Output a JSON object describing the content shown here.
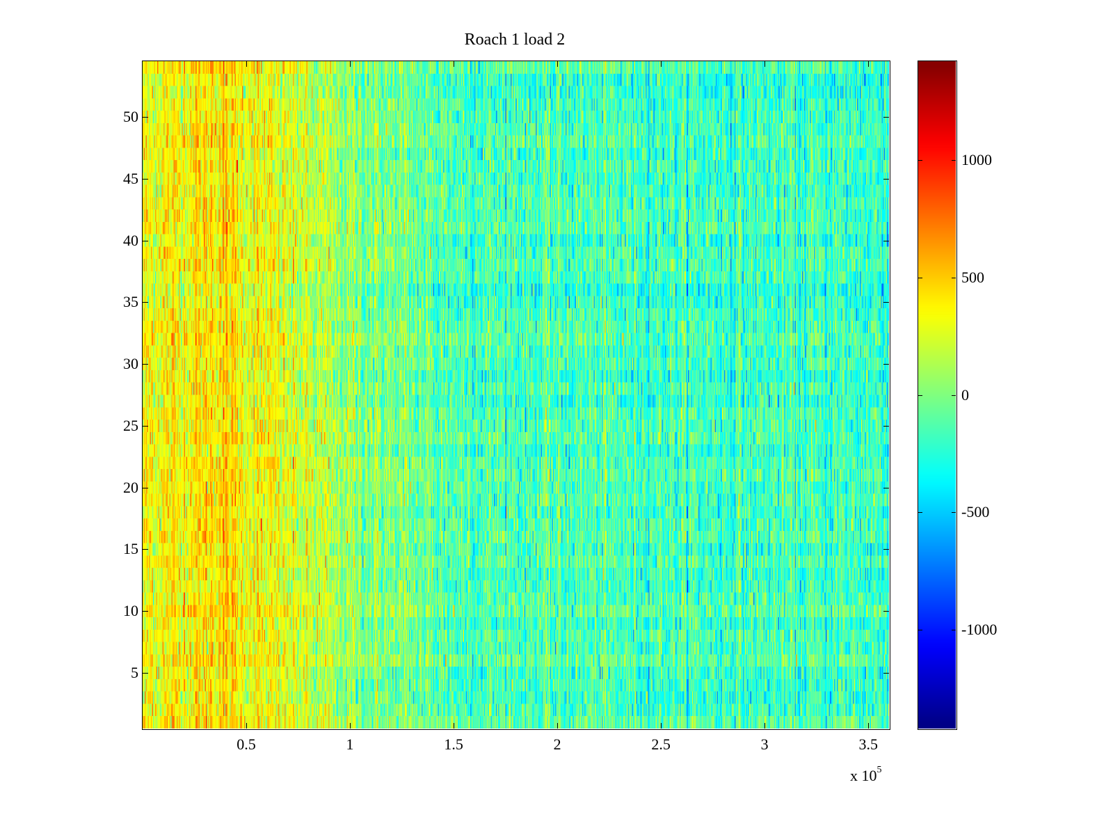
{
  "chart_data": {
    "type": "heatmap",
    "title": "Roach 1 load 2",
    "xlabel": "",
    "ylabel": "",
    "x_multiplier_label": "x 10",
    "x_multiplier_exponent": "5",
    "xlim": [
      0,
      3.6
    ],
    "ylim": [
      0.5,
      54.5
    ],
    "rows": 54,
    "x_ticks": [
      0.5,
      1,
      1.5,
      2,
      2.5,
      3,
      3.5
    ],
    "x_tick_labels": [
      "0.5",
      "1",
      "1.5",
      "2",
      "2.5",
      "3",
      "3.5"
    ],
    "y_ticks": [
      5,
      10,
      15,
      20,
      25,
      30,
      35,
      40,
      45,
      50
    ],
    "y_tick_labels": [
      "5",
      "10",
      "15",
      "20",
      "25",
      "30",
      "35",
      "40",
      "45",
      "50"
    ],
    "colormap": "jet",
    "clim": [
      -1420,
      1420
    ],
    "colorbar_ticks": [
      1000,
      500,
      0,
      -500,
      -1000
    ],
    "colorbar_tick_labels": [
      "1000",
      "500",
      "0",
      "-500",
      "-1000"
    ],
    "column_mean_profile": {
      "x": [
        0,
        0.2,
        0.4,
        0.5,
        0.7,
        1.0,
        1.5,
        2.0,
        2.5,
        3.0,
        3.6
      ],
      "mean": [
        330,
        380,
        450,
        350,
        250,
        50,
        -120,
        -150,
        -160,
        -180,
        -180
      ]
    },
    "noise_std": 210,
    "grid": false
  }
}
